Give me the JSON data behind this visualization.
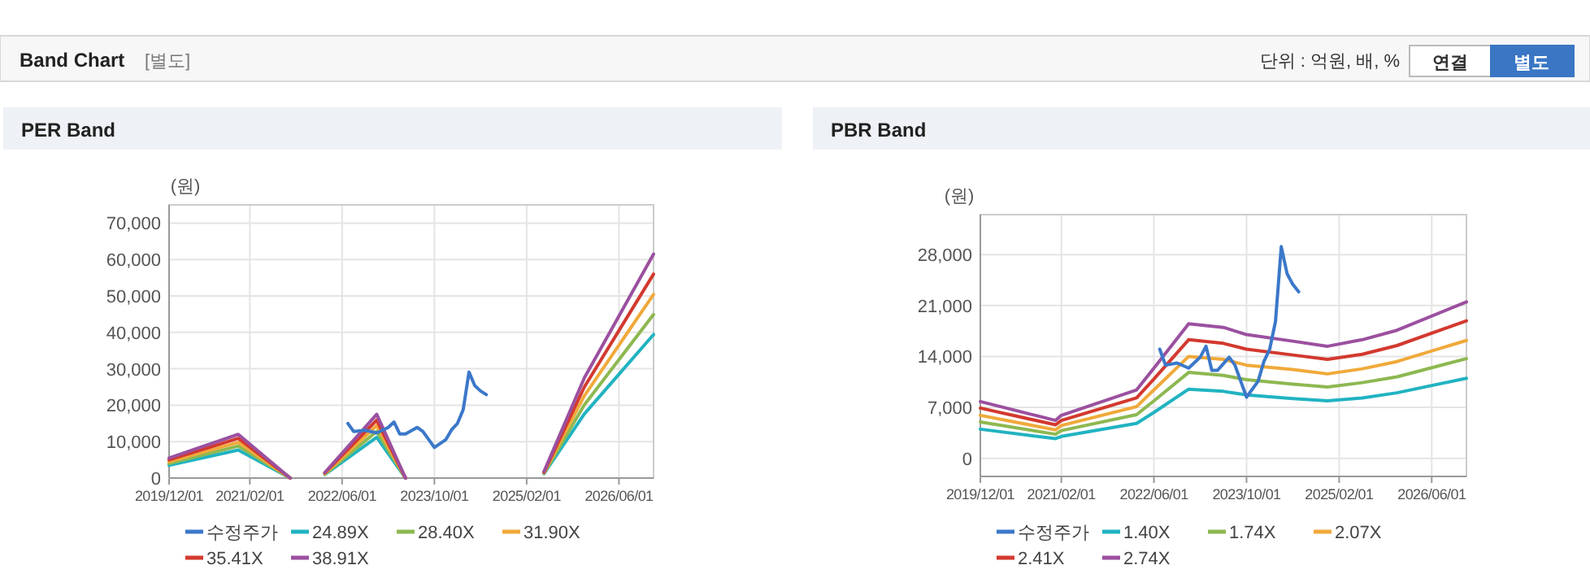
{
  "chart_data": [
    {
      "type": "other",
      "title": "Band Chart",
      "subtitle": "[별도]",
      "annotations": [
        "단위 : 억원, 배, %",
        "연결",
        "별도"
      ]
    },
    {
      "type": "line",
      "title": "PER Band",
      "ylabel": "(원)",
      "grid": true,
      "legend": "bottom",
      "marker": "none",
      "line_style": "solid",
      "xlim": [
        "2019-12-01",
        "2026-12-01"
      ],
      "ylim": [
        0,
        75000
      ],
      "xticks": [
        {
          "value": "2019-12-01",
          "label": "2019/12/01"
        },
        {
          "value": "2021-02-01",
          "label": "2021/02/01"
        },
        {
          "value": "2022-06-01",
          "label": "2022/06/01"
        },
        {
          "value": "2023-10-01",
          "label": "2023/10/01"
        },
        {
          "value": "2025-02-01",
          "label": "2025/02/01"
        },
        {
          "value": "2026-06-01",
          "label": "2026/06/01"
        }
      ],
      "yticks": [
        0,
        {
          "value": 10000,
          "label": "10,000"
        },
        {
          "value": 20000,
          "label": "20,000"
        },
        {
          "value": 30000,
          "label": "30,000"
        },
        {
          "value": 40000,
          "label": "40,000"
        },
        {
          "value": 50000,
          "label": "50,000"
        },
        {
          "value": 60000,
          "label": "60,000"
        },
        {
          "value": 70000,
          "label": "70,000"
        }
      ],
      "series": [
        {
          "name": "수정주가",
          "color": "#3b78c9",
          "x": [
            "2022-07",
            "2022-08",
            "2022-10",
            "2022-12",
            "2023-02",
            "2023-03",
            "2023-04",
            "2023-05",
            "2023-07",
            "2023-08",
            "2023-10",
            "2023-12",
            "2024-01",
            "2024-02",
            "2024-03",
            "2024-04",
            "2024-05",
            "2024-06",
            "2024-07"
          ],
          "values": [
            15000,
            12800,
            13100,
            12400,
            13900,
            15400,
            12100,
            12100,
            13900,
            12800,
            8400,
            10600,
            13300,
            15000,
            18800,
            29100,
            25400,
            23900,
            22900
          ]
        },
        {
          "name": "24.89X",
          "color": "#21b3c1",
          "x": [
            "2019-12",
            "2020-12",
            "2021-09",
            "2021-12",
            "2022-03",
            "2022-12",
            "2023-05",
            "2024-06",
            "2025-05",
            "2025-12",
            "2026-12"
          ],
          "values": [
            3500,
            7700,
            0,
            null,
            1000,
            11200,
            0,
            null,
            1200,
            17600,
            39400
          ]
        },
        {
          "name": "28.40X",
          "color": "#8db851",
          "x": [
            "2019-12",
            "2020-12",
            "2021-09",
            "2021-12",
            "2022-03",
            "2022-12",
            "2023-05",
            "2024-06",
            "2025-05",
            "2025-12",
            "2026-12"
          ],
          "values": [
            4000,
            8800,
            0,
            null,
            1100,
            12800,
            0,
            null,
            1300,
            20100,
            44900
          ]
        },
        {
          "name": "31.90X",
          "color": "#f0a93a",
          "x": [
            "2019-12",
            "2020-12",
            "2021-09",
            "2021-12",
            "2022-03",
            "2022-12",
            "2023-05",
            "2024-06",
            "2025-05",
            "2025-12",
            "2026-12"
          ],
          "values": [
            4500,
            9800,
            0,
            null,
            1200,
            14400,
            0,
            null,
            1500,
            22600,
            50400
          ]
        },
        {
          "name": "35.41X",
          "color": "#d3392f",
          "x": [
            "2019-12",
            "2020-12",
            "2021-09",
            "2021-12",
            "2022-03",
            "2022-12",
            "2023-05",
            "2024-06",
            "2025-05",
            "2025-12",
            "2026-12"
          ],
          "values": [
            5000,
            10900,
            0,
            null,
            1400,
            15900,
            0,
            null,
            1600,
            25000,
            56000
          ]
        },
        {
          "name": "38.91X",
          "color": "#9b509f",
          "x": [
            "2019-12",
            "2020-12",
            "2021-09",
            "2021-12",
            "2022-03",
            "2022-12",
            "2023-05",
            "2024-06",
            "2025-05",
            "2025-12",
            "2026-12"
          ],
          "values": [
            5500,
            12000,
            0,
            null,
            1500,
            17500,
            0,
            null,
            1800,
            27500,
            61500
          ]
        }
      ]
    },
    {
      "type": "line",
      "title": "PBR Band",
      "ylabel": "(원)",
      "grid": true,
      "legend": "bottom",
      "marker": "none",
      "line_style": "solid",
      "xlim": [
        "2019-12-01",
        "2026-12-01"
      ],
      "ylim": [
        -2500,
        33500
      ],
      "xticks": [
        {
          "value": "2019-12-01",
          "label": "2019/12/01"
        },
        {
          "value": "2021-02-01",
          "label": "2021/02/01"
        },
        {
          "value": "2022-06-01",
          "label": "2022/06/01"
        },
        {
          "value": "2023-10-01",
          "label": "2023/10/01"
        },
        {
          "value": "2025-02-01",
          "label": "2025/02/01"
        },
        {
          "value": "2026-06-01",
          "label": "2026/06/01"
        }
      ],
      "yticks": [
        0,
        {
          "value": 7000,
          "label": "7,000"
        },
        {
          "value": 14000,
          "label": "14,000"
        },
        {
          "value": 21000,
          "label": "21,000"
        },
        {
          "value": 28000,
          "label": "28,000"
        }
      ],
      "series": [
        {
          "name": "수정주가",
          "color": "#3b78c9",
          "x": [
            "2022-07",
            "2022-08",
            "2022-10",
            "2022-12",
            "2023-02",
            "2023-03",
            "2023-04",
            "2023-05",
            "2023-07",
            "2023-08",
            "2023-10",
            "2023-12",
            "2024-01",
            "2024-02",
            "2024-03",
            "2024-04",
            "2024-05",
            "2024-06",
            "2024-07"
          ],
          "values": [
            15000,
            12800,
            13100,
            12400,
            13900,
            15400,
            12100,
            12100,
            13900,
            12800,
            8400,
            10600,
            13300,
            15000,
            18800,
            29100,
            25400,
            23900,
            22900
          ]
        },
        {
          "name": "1.40X",
          "color": "#21b3c1",
          "x": [
            "2019-12",
            "2021-01",
            "2021-02",
            "2022-03",
            "2022-06",
            "2022-12",
            "2023-06",
            "2023-10",
            "2024-06",
            "2024-12",
            "2025-06",
            "2025-12",
            "2026-12"
          ],
          "values": [
            4000,
            2700,
            3000,
            4800,
            6300,
            9500,
            9200,
            8700,
            8200,
            7900,
            8300,
            9000,
            11000
          ]
        },
        {
          "name": "1.74X",
          "color": "#8db851",
          "x": [
            "2019-12",
            "2021-01",
            "2021-02",
            "2022-03",
            "2022-06",
            "2022-12",
            "2023-06",
            "2023-10",
            "2024-06",
            "2024-12",
            "2025-06",
            "2025-12",
            "2026-12"
          ],
          "values": [
            5000,
            3300,
            3800,
            6000,
            7900,
            11800,
            11400,
            10800,
            10200,
            9800,
            10400,
            11200,
            13700
          ]
        },
        {
          "name": "2.07X",
          "color": "#f0a93a",
          "x": [
            "2019-12",
            "2021-01",
            "2021-02",
            "2022-03",
            "2022-06",
            "2022-12",
            "2023-06",
            "2023-10",
            "2024-06",
            "2024-12",
            "2025-06",
            "2025-12",
            "2026-12"
          ],
          "values": [
            5900,
            3900,
            4500,
            7100,
            9400,
            14000,
            13600,
            12800,
            12200,
            11600,
            12300,
            13300,
            16200
          ]
        },
        {
          "name": "2.41X",
          "color": "#d3392f",
          "x": [
            "2019-12",
            "2021-01",
            "2021-02",
            "2022-03",
            "2022-06",
            "2022-12",
            "2023-06",
            "2023-10",
            "2024-06",
            "2024-12",
            "2025-06",
            "2025-12",
            "2026-12"
          ],
          "values": [
            6900,
            4600,
            5200,
            8300,
            10900,
            16300,
            15800,
            15000,
            14200,
            13600,
            14300,
            15500,
            18900
          ]
        },
        {
          "name": "2.74X",
          "color": "#9b509f",
          "x": [
            "2019-12",
            "2021-01",
            "2021-02",
            "2022-03",
            "2022-06",
            "2022-12",
            "2023-06",
            "2023-10",
            "2024-06",
            "2024-12",
            "2025-06",
            "2025-12",
            "2026-12"
          ],
          "values": [
            7800,
            5200,
            5900,
            9400,
            12400,
            18500,
            18000,
            17000,
            16100,
            15400,
            16300,
            17600,
            21500
          ]
        }
      ]
    }
  ]
}
